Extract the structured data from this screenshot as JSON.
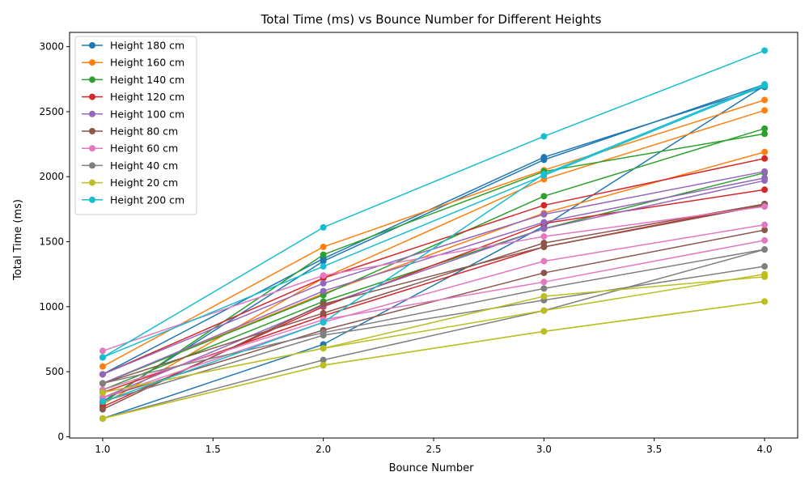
{
  "chart_data": {
    "type": "line",
    "title": "Total Time (ms) vs Bounce Number for Different Heights",
    "xlabel": "Bounce Number",
    "ylabel": "Total Time (ms)",
    "xlim": [
      0.85,
      4.15
    ],
    "ylim": [
      -10,
      3110
    ],
    "x_ticks": [
      "1.0",
      "1.5",
      "2.0",
      "2.5",
      "3.0",
      "3.5",
      "4.0"
    ],
    "y_ticks": [
      "0",
      "500",
      "1000",
      "1500",
      "2000",
      "2500",
      "3000"
    ],
    "grid": false,
    "legend_position": "upper-left",
    "x": [
      1,
      2,
      3,
      4
    ],
    "series": [
      {
        "name": "Height 180 cm",
        "color": "#1f77b4",
        "lines": [
          [
            480,
            1370,
            2150,
            2690
          ],
          [
            270,
            1350,
            2130,
            2710
          ],
          [
            140,
            710,
            1620,
            2700
          ]
        ]
      },
      {
        "name": "Height 160 cm",
        "color": "#ff7f0e",
        "lines": [
          [
            540,
            1460,
            2050,
            2590
          ],
          [
            250,
            1220,
            1980,
            2510
          ],
          [
            410,
            1100,
            1720,
            2190
          ]
        ]
      },
      {
        "name": "Height 140 cm",
        "color": "#2ca02c",
        "lines": [
          [
            260,
            1400,
            2040,
            2330
          ],
          [
            410,
            1090,
            1850,
            2370
          ],
          [
            360,
            1040,
            1600,
            2030
          ]
        ]
      },
      {
        "name": "Height 120 cm",
        "color": "#d62728",
        "lines": [
          [
            480,
            1220,
            1780,
            2140
          ],
          [
            230,
            1000,
            1640,
            1900
          ],
          [
            340,
            930,
            1460,
            1790
          ]
        ]
      },
      {
        "name": "Height 100 cm",
        "color": "#9467bd",
        "lines": [
          [
            480,
            1180,
            1710,
            2040
          ],
          [
            410,
            1120,
            1650,
            1990
          ],
          [
            300,
            1010,
            1600,
            1970
          ]
        ]
      },
      {
        "name": "Height 80 cm",
        "color": "#8c564b",
        "lines": [
          [
            410,
            950,
            1490,
            1790
          ],
          [
            210,
            1020,
            1460,
            1780
          ],
          [
            300,
            820,
            1260,
            1590
          ]
        ]
      },
      {
        "name": "Height 60 cm",
        "color": "#e377c2",
        "lines": [
          [
            660,
            1240,
            1540,
            1770
          ],
          [
            300,
            880,
            1350,
            1630
          ],
          [
            360,
            900,
            1190,
            1510
          ]
        ]
      },
      {
        "name": "Height 40 cm",
        "color": "#7f7f7f",
        "lines": [
          [
            410,
            800,
            1140,
            1440
          ],
          [
            270,
            780,
            1050,
            1310
          ],
          [
            140,
            590,
            970,
            1440
          ]
        ]
      },
      {
        "name": "Height 20 cm",
        "color": "#bcbd22",
        "lines": [
          [
            340,
            680,
            970,
            1250
          ],
          [
            140,
            550,
            810,
            1040
          ],
          [
            140,
            550,
            810,
            1040
          ],
          [
            340,
            680,
            1080,
            1230
          ]
        ]
      },
      {
        "name": "Height 200 cm",
        "color": "#17becf",
        "lines": [
          [
            610,
            1610,
            2310,
            2970
          ],
          [
            610,
            1310,
            2010,
            2700
          ],
          [
            270,
            880,
            2020,
            2710
          ]
        ]
      }
    ]
  }
}
